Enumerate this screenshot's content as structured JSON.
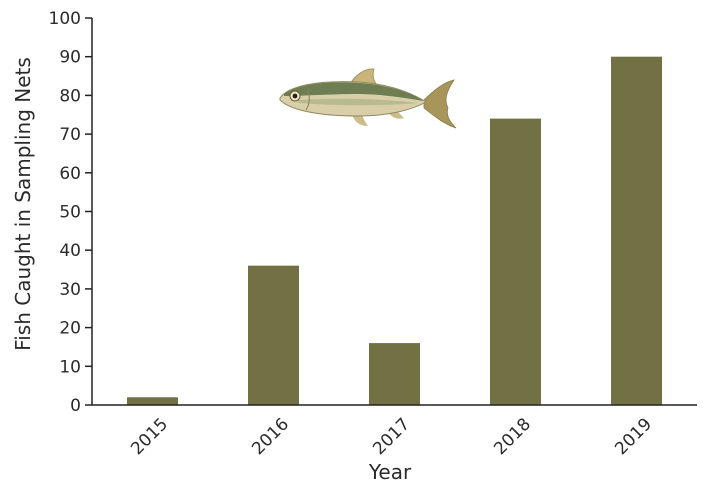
{
  "chart_data": {
    "type": "bar",
    "categories": [
      "2015",
      "2016",
      "2017",
      "2018",
      "2019"
    ],
    "values": [
      2,
      36,
      16,
      74,
      90
    ],
    "xlabel": "Year",
    "ylabel": "Fish Caught in Sampling Nets",
    "ylim": [
      0,
      100
    ],
    "yticks": [
      0,
      10,
      20,
      30,
      40,
      50,
      60,
      70,
      80,
      90,
      100
    ],
    "grid": false,
    "bar_color": "#717143",
    "decoration": "fish-illustration"
  }
}
